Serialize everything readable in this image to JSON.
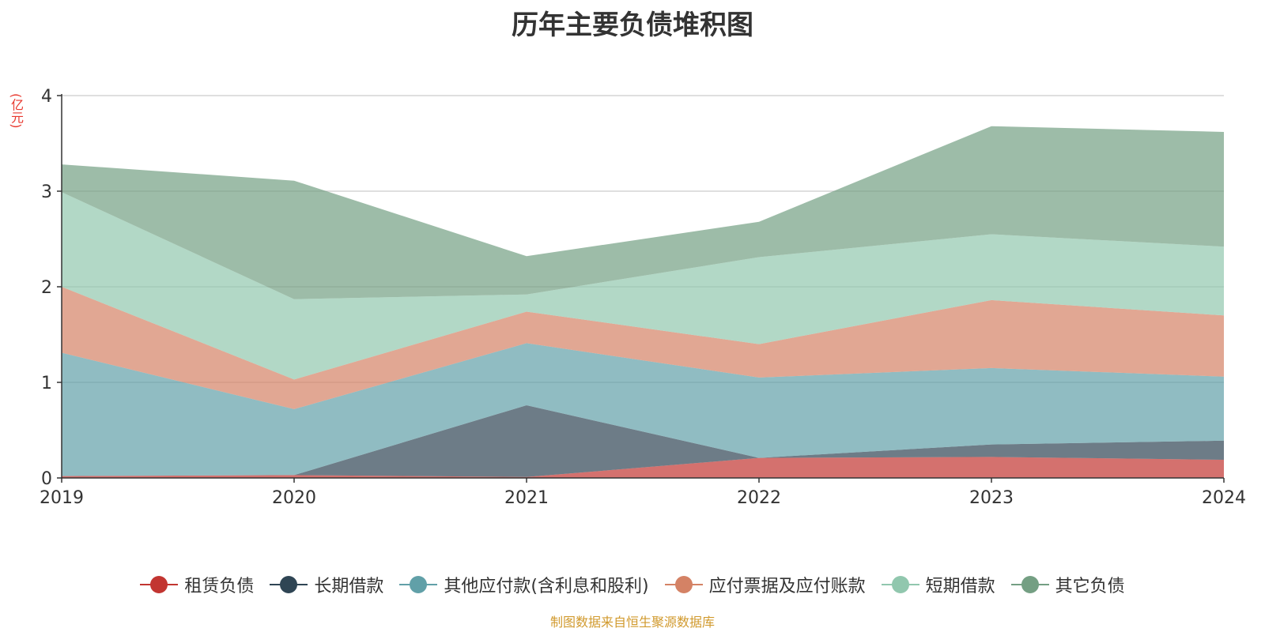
{
  "chart_data": {
    "type": "area",
    "stacked": true,
    "title": "历年主要负债堆积图",
    "ylabel": "(亿元)",
    "x": [
      "2019",
      "2020",
      "2021",
      "2022",
      "2023",
      "2024"
    ],
    "ylim": [
      0,
      4
    ],
    "yticks": [
      0,
      1,
      2,
      3,
      4
    ],
    "grid": true,
    "legend_position": "bottom",
    "series": [
      {
        "name": "租赁负债",
        "color": "#c23531",
        "values": [
          0.02,
          0.03,
          0.01,
          0.21,
          0.22,
          0.19
        ]
      },
      {
        "name": "长期借款",
        "color": "#2f4554",
        "values": [
          0.0,
          0.0,
          0.75,
          0.0,
          0.13,
          0.2
        ]
      },
      {
        "name": "其他应付款(含利息和股利)",
        "color": "#61a0a8",
        "values": [
          1.29,
          0.69,
          0.65,
          0.84,
          0.8,
          0.67
        ]
      },
      {
        "name": "应付票据及应付账款",
        "color": "#d48265",
        "values": [
          0.69,
          0.31,
          0.33,
          0.35,
          0.71,
          0.64
        ]
      },
      {
        "name": "短期借款",
        "color": "#91c7ae",
        "values": [
          0.99,
          0.84,
          0.18,
          0.91,
          0.69,
          0.72
        ]
      },
      {
        "name": "其它负债",
        "color": "#749f83",
        "values": [
          0.29,
          1.24,
          0.4,
          0.37,
          1.13,
          1.2
        ]
      }
    ]
  },
  "footer": {
    "source": "制图数据来自恒生聚源数据库"
  }
}
